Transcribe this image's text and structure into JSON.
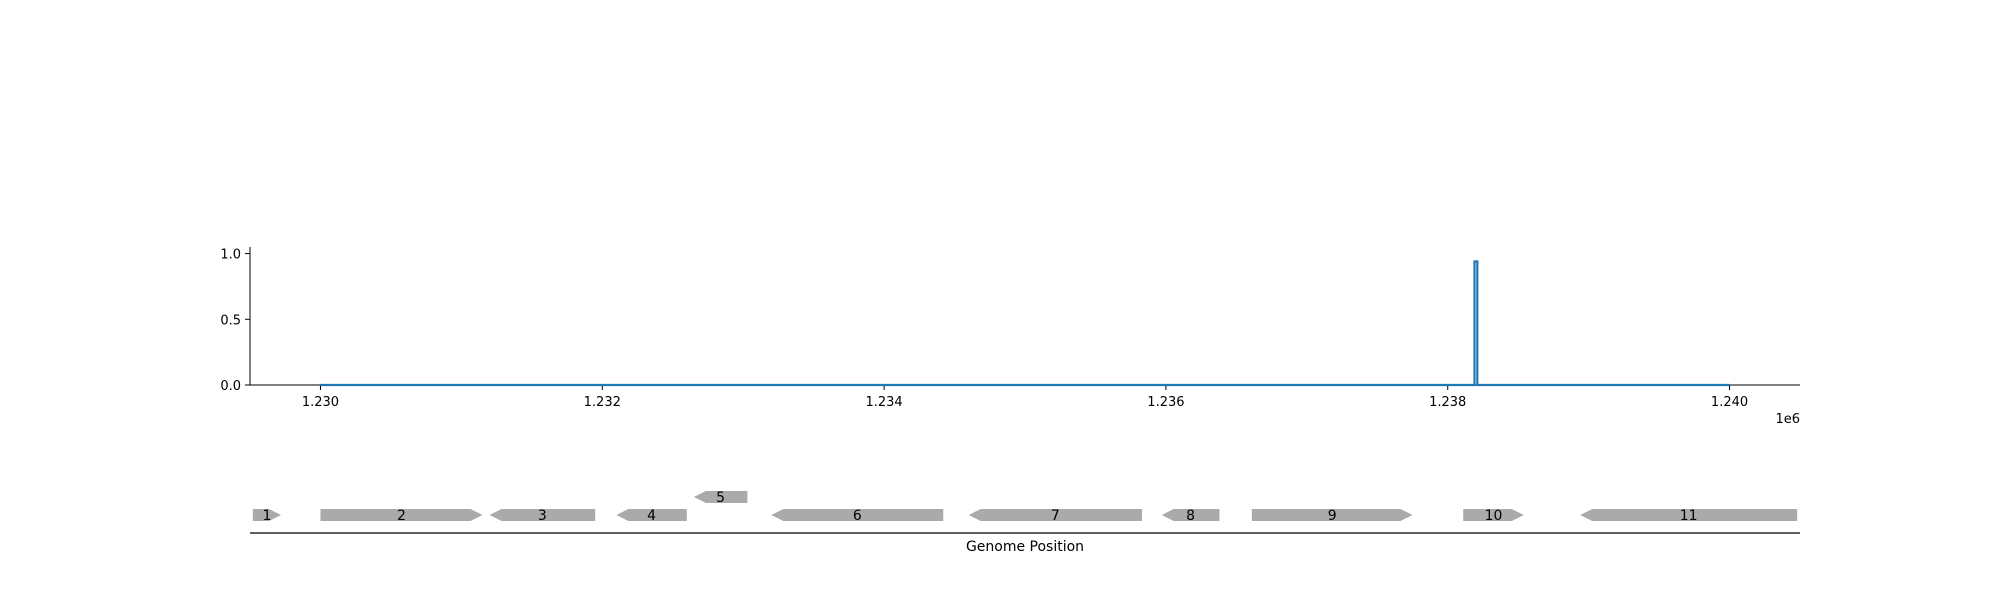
{
  "chart_data": [
    {
      "type": "line",
      "title": "",
      "xlabel": "",
      "ylabel": "",
      "x_offset_label": "1e6",
      "xlim": [
        1229500,
        1240500
      ],
      "ylim": [
        0,
        1.05
      ],
      "x_ticks": [
        1230000,
        1232000,
        1234000,
        1236000,
        1238000,
        1240000
      ],
      "x_tick_labels": [
        "1.230",
        "1.232",
        "1.234",
        "1.236",
        "1.238",
        "1.240"
      ],
      "y_ticks": [
        0.0,
        0.5,
        1.0
      ],
      "y_tick_labels": [
        "0.0",
        "0.5",
        "1.0"
      ],
      "grid": false,
      "series": [
        {
          "x": [
            1230000,
            1238190,
            1238190,
            1238210,
            1238210,
            1240000
          ],
          "y": [
            0.0,
            0.0,
            0.94,
            0.94,
            0.0,
            0.0
          ]
        }
      ]
    },
    {
      "type": "gene-track",
      "xlabel": "Genome Position",
      "xlim": [
        1229500,
        1240500
      ],
      "genes": [
        {
          "label": "1",
          "start": 1229520,
          "end": 1229720,
          "strand": "+",
          "row": 0
        },
        {
          "label": "2",
          "start": 1230000,
          "end": 1231150,
          "strand": "+",
          "row": 0
        },
        {
          "label": "3",
          "start": 1231200,
          "end": 1231950,
          "strand": "-",
          "row": 0
        },
        {
          "label": "4",
          "start": 1232100,
          "end": 1232600,
          "strand": "-",
          "row": 0
        },
        {
          "label": "5",
          "start": 1232650,
          "end": 1233030,
          "strand": "-",
          "row": 1
        },
        {
          "label": "6",
          "start": 1233200,
          "end": 1234420,
          "strand": "-",
          "row": 0
        },
        {
          "label": "7",
          "start": 1234600,
          "end": 1235830,
          "strand": "-",
          "row": 0
        },
        {
          "label": "8",
          "start": 1235970,
          "end": 1236380,
          "strand": "-",
          "row": 0
        },
        {
          "label": "9",
          "start": 1236610,
          "end": 1237750,
          "strand": "+",
          "row": 0
        },
        {
          "label": "10",
          "start": 1238110,
          "end": 1238540,
          "strand": "+",
          "row": 0
        },
        {
          "label": "11",
          "start": 1238940,
          "end": 1240480,
          "strand": "-",
          "row": 0
        }
      ],
      "colors": {
        "gene": "#aaaaaa"
      }
    }
  ],
  "colors": {
    "line": "#1f77b4",
    "axis": "#000000"
  }
}
